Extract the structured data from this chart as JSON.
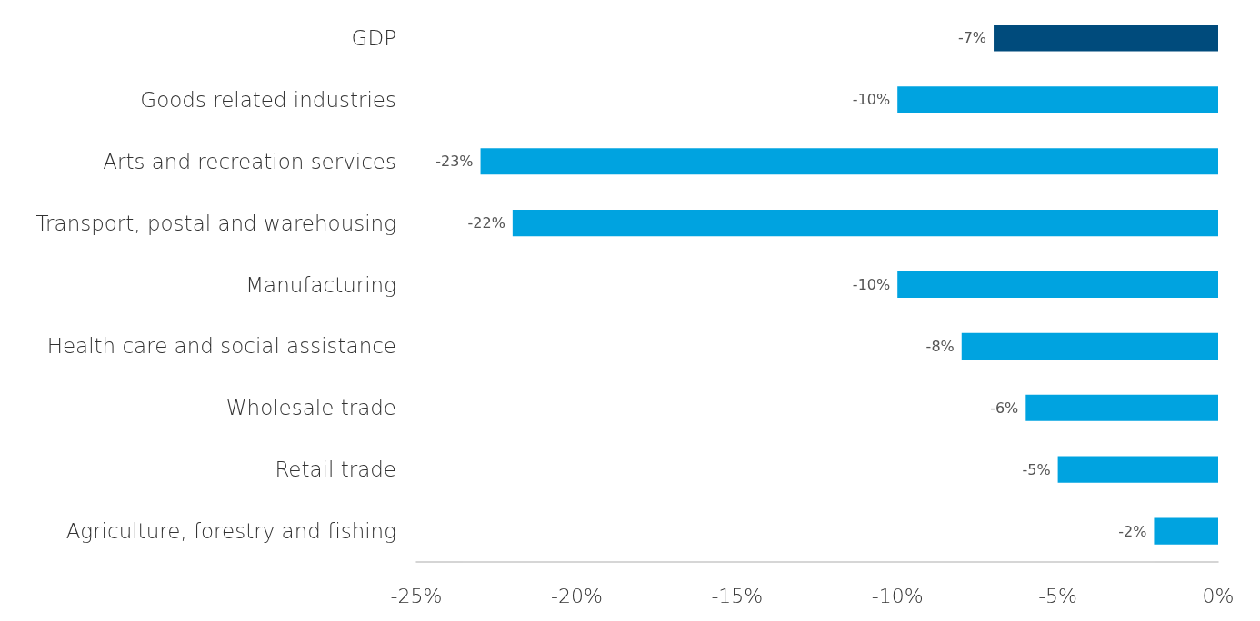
{
  "chart_data": {
    "type": "bar",
    "orientation": "horizontal",
    "categories": [
      "GDP",
      "Goods related industries",
      "Arts and recreation services",
      "Transport, postal and warehousing",
      "Manufacturing",
      "Health care and social assistance",
      "Wholesale trade",
      "Retail trade",
      "Agriculture, forestry and fishing"
    ],
    "values": [
      -7,
      -10,
      -23,
      -22,
      -10,
      -8,
      -6,
      -5,
      -2
    ],
    "colors": [
      "#004b7c",
      "#00a3e0",
      "#00a3e0",
      "#00a3e0",
      "#00a3e0",
      "#00a3e0",
      "#00a3e0",
      "#00a3e0",
      "#00a3e0"
    ],
    "value_labels": [
      "-7%",
      "-10%",
      "-23%",
      "-22%",
      "-10%",
      "-8%",
      "-6%",
      "-5%",
      "-2%"
    ],
    "xlim": [
      -25,
      0
    ],
    "xticks": [
      {
        "value": -25,
        "label": "-25%"
      },
      {
        "value": -20,
        "label": "-20%"
      },
      {
        "value": -15,
        "label": "-15%"
      },
      {
        "value": -10,
        "label": "-10%"
      },
      {
        "value": -5,
        "label": "-5%"
      },
      {
        "value": 0,
        "label": "0%"
      }
    ],
    "grid": false
  }
}
